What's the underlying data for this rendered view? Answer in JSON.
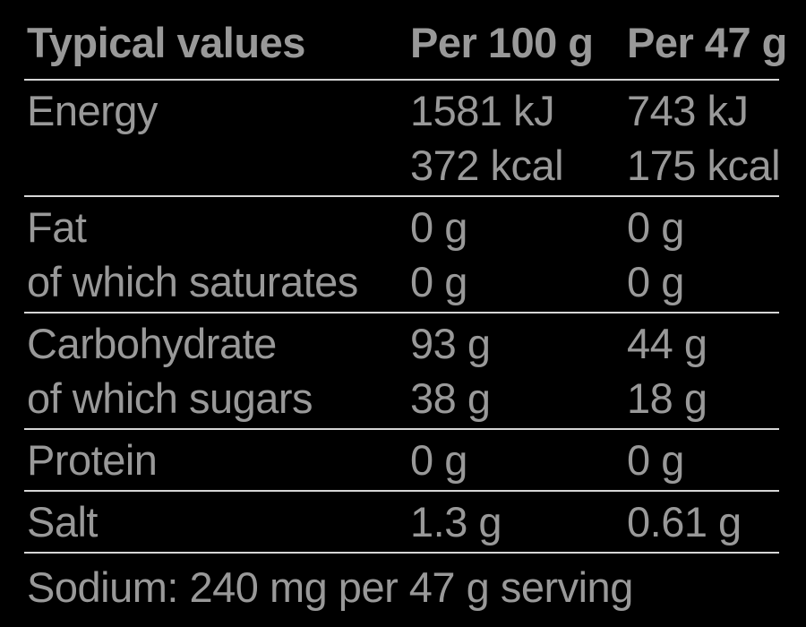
{
  "panel": {
    "header": {
      "col_label": "Typical values",
      "col_per100": "Per 100 g",
      "col_per47": "Per 47 g"
    },
    "groups": [
      {
        "rows": [
          {
            "label": "Energy",
            "per100": "1581 kJ",
            "per47": "743 kJ"
          },
          {
            "label": "",
            "per100": "372 kcal",
            "per47": "175 kcal"
          }
        ]
      },
      {
        "rows": [
          {
            "label": "Fat",
            "per100": "0 g",
            "per47": "0 g"
          },
          {
            "label": "of which saturates",
            "per100": "0 g",
            "per47": "0 g"
          }
        ]
      },
      {
        "rows": [
          {
            "label": "Carbohydrate",
            "per100": "93 g",
            "per47": "44 g"
          },
          {
            "label": "of which sugars",
            "per100": "38 g",
            "per47": "18 g"
          }
        ]
      },
      {
        "rows": [
          {
            "label": "Protein",
            "per100": "0 g",
            "per47": "0 g"
          }
        ]
      },
      {
        "rows": [
          {
            "label": "Salt",
            "per100": "1.3 g",
            "per47": "0.61 g"
          }
        ]
      }
    ],
    "footer_note": "Sodium: 240 mg per 47 g serving",
    "colors": {
      "background": "#000000",
      "text": "#999999",
      "rule": "#d6d6d6"
    }
  }
}
